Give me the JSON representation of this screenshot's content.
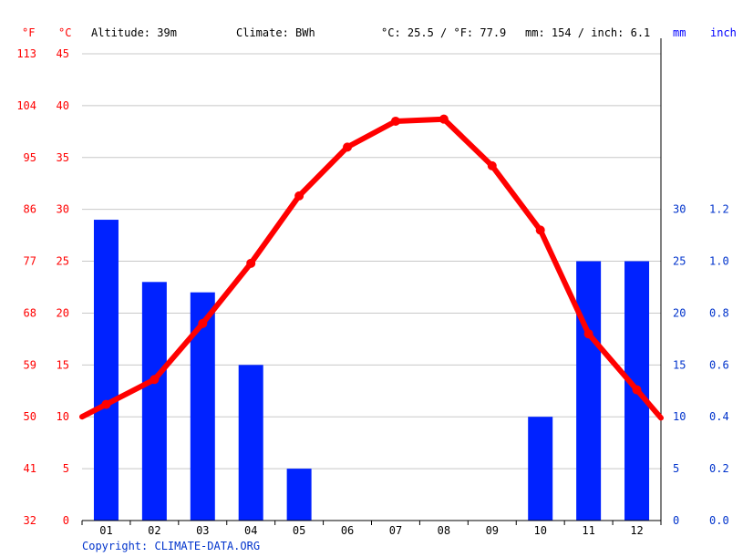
{
  "header": {
    "unit_f": "°F",
    "unit_c": "°C",
    "altitude": "Altitude: 39m",
    "climate": "Climate: BWh",
    "temp_summary": "°C: 25.5 / °F: 77.9",
    "precip_summary": "mm: 154 / inch: 6.1",
    "unit_mm": "mm",
    "unit_inch": "inch"
  },
  "footer": {
    "copyright": "Copyright: CLIMATE-DATA.ORG"
  },
  "colors": {
    "temperature": "#ff0000",
    "precipitation": "#0022ff",
    "left_axis_text": "#ff0000",
    "right_axis_text": "#0033cc"
  },
  "chart_data": {
    "type": "bar+line",
    "categories": [
      "01",
      "02",
      "03",
      "04",
      "05",
      "06",
      "07",
      "08",
      "09",
      "10",
      "11",
      "12"
    ],
    "series": [
      {
        "type": "bar",
        "axis": "right",
        "values": [
          29,
          23,
          22,
          15,
          5,
          0,
          0,
          0,
          0,
          10,
          25,
          25
        ]
      },
      {
        "type": "line",
        "axis": "left",
        "values": [
          11.2,
          13.6,
          19.0,
          24.8,
          31.3,
          36.0,
          38.5,
          38.7,
          34.2,
          28.0,
          18.0,
          12.6
        ]
      }
    ],
    "left_axis": {
      "ylim": [
        0,
        45
      ],
      "celsius_ticks": [
        "0",
        "5",
        "10",
        "15",
        "20",
        "25",
        "30",
        "35",
        "40",
        "45"
      ],
      "fahrenheit_ticks": [
        "32",
        "41",
        "50",
        "59",
        "68",
        "77",
        "86",
        "95",
        "104",
        "113"
      ]
    },
    "right_axis": {
      "ylim": [
        0,
        45
      ],
      "mm_ticks": [
        "0",
        "5",
        "10",
        "15",
        "20",
        "25",
        "30"
      ],
      "inch_ticks": [
        "0.0",
        "0.2",
        "0.4",
        "0.6",
        "0.8",
        "1.0",
        "1.2"
      ]
    },
    "grid": true
  }
}
